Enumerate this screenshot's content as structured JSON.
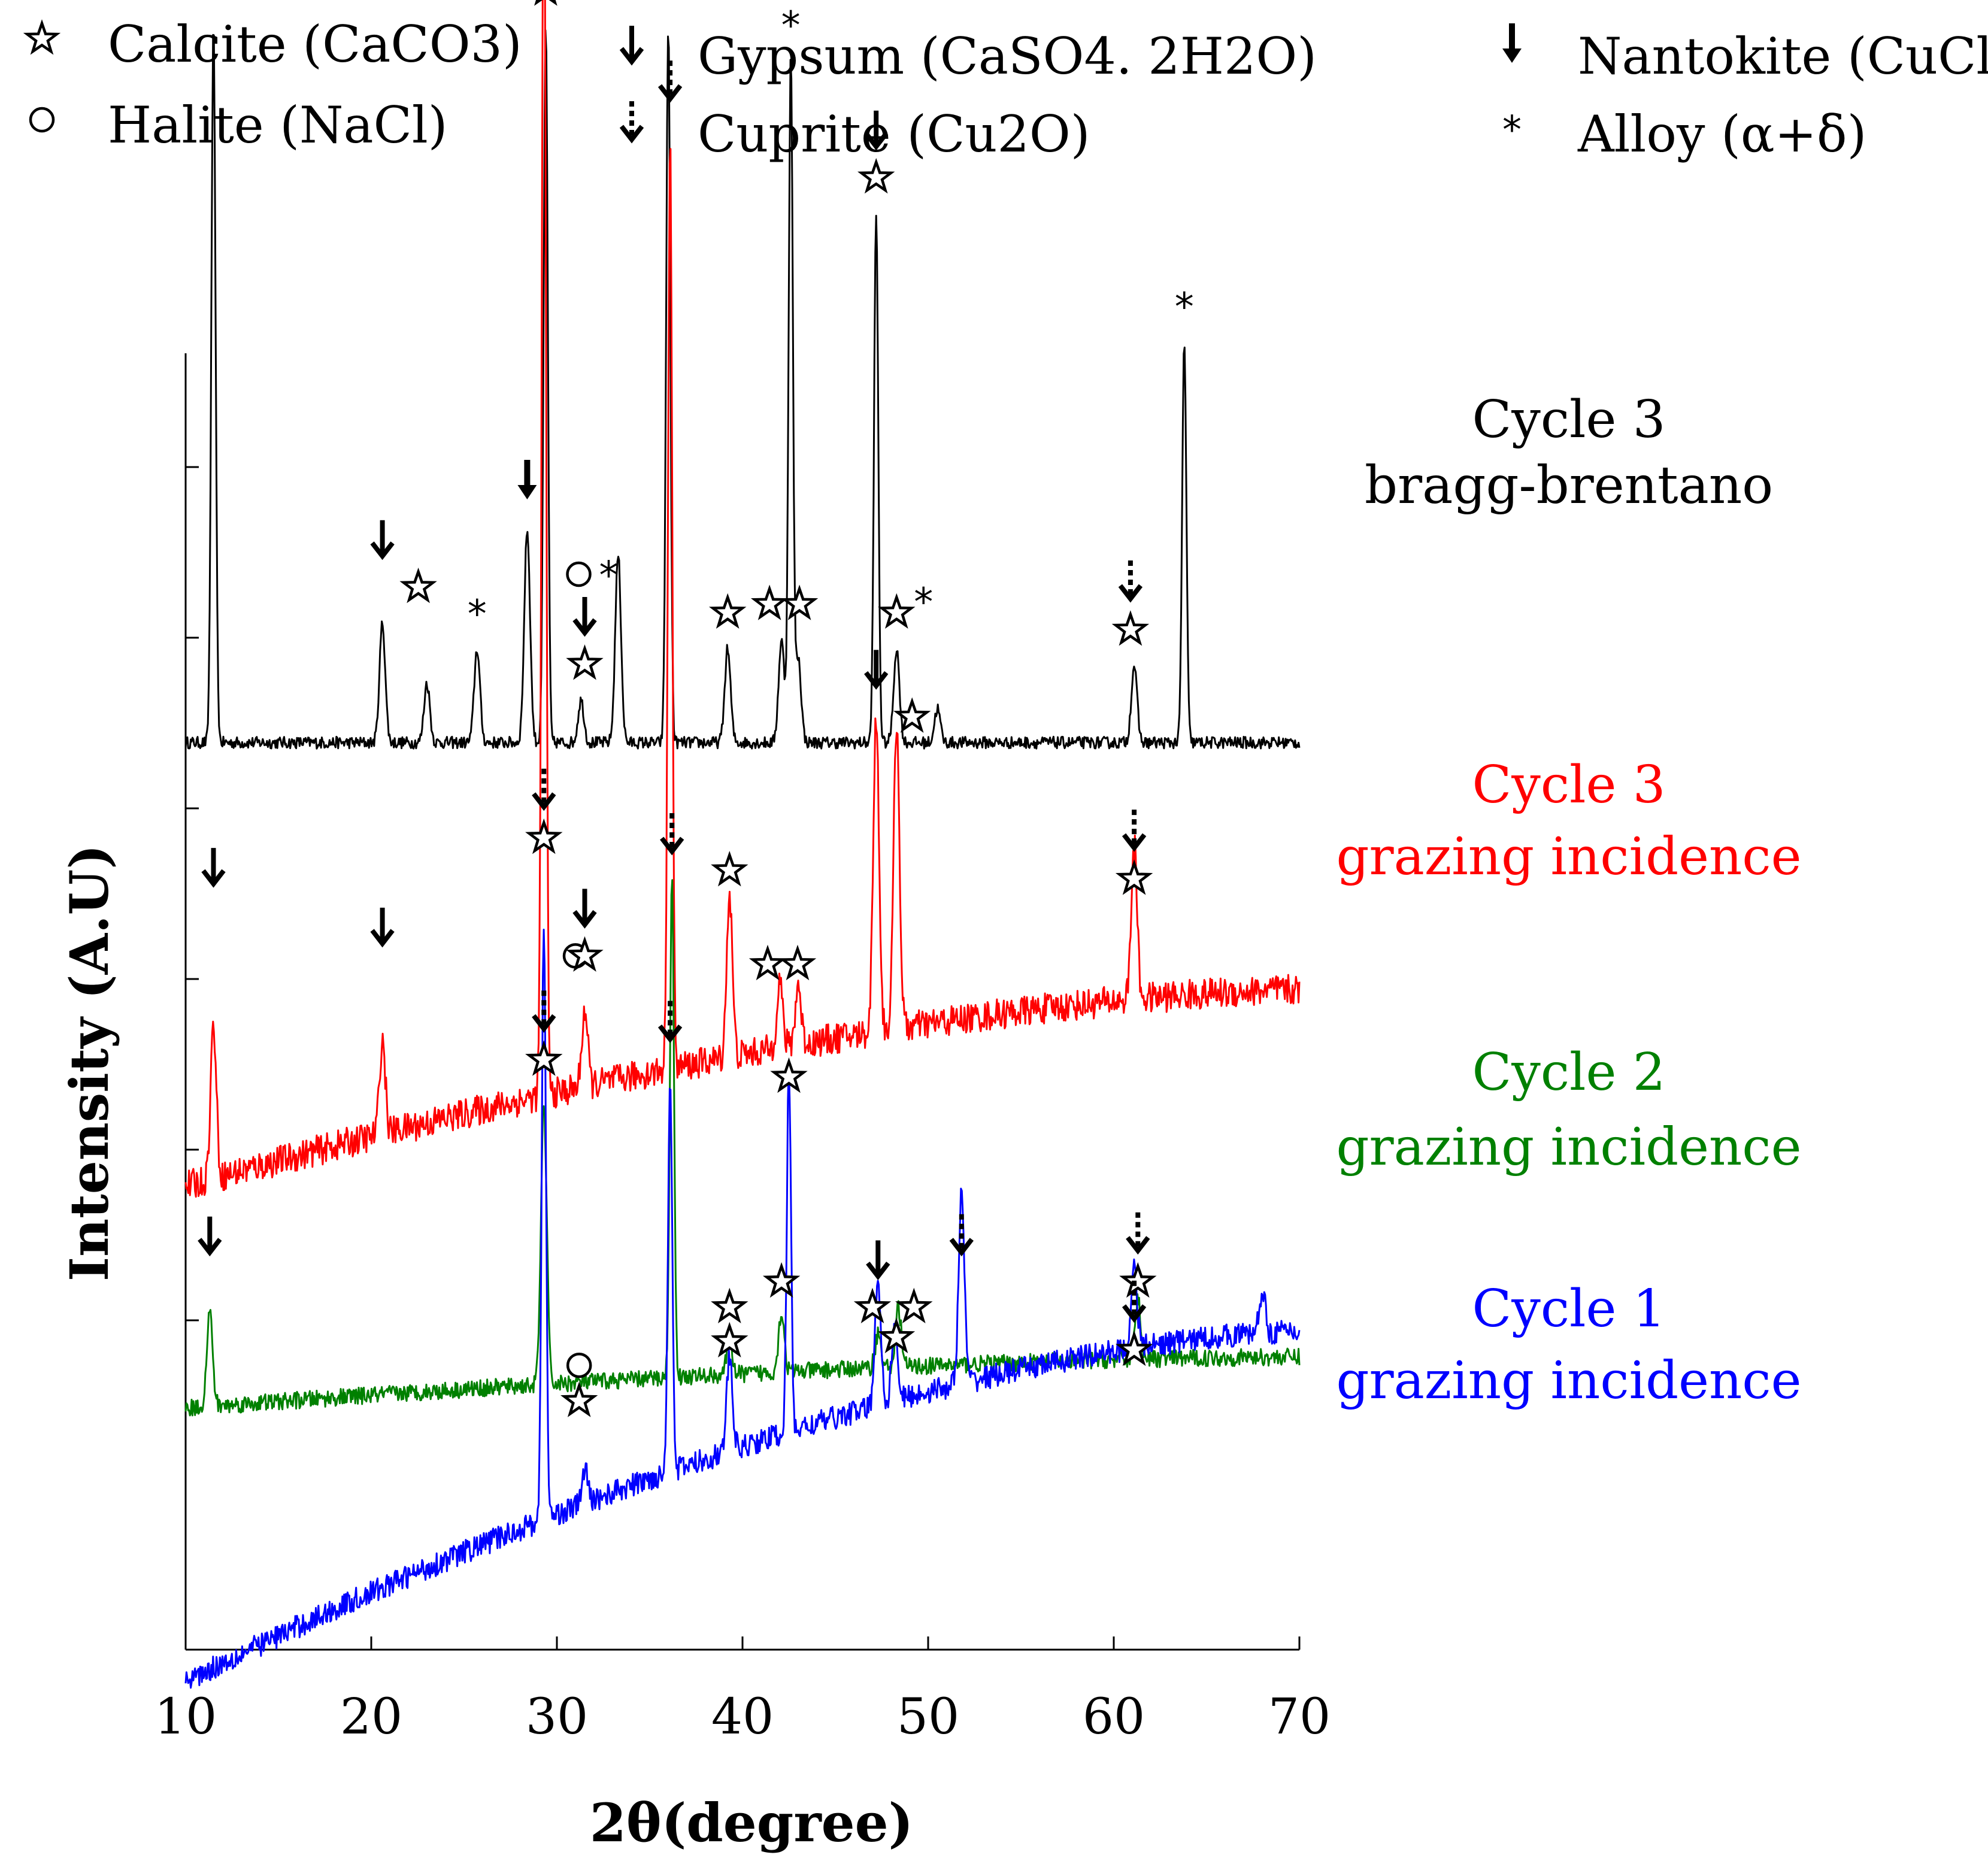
{
  "chart_data": {
    "type": "line",
    "xlabel": "2θ(degree)",
    "ylabel": "Intensity (A.U)",
    "xlim": [
      10,
      70
    ],
    "xticks": [
      10,
      20,
      30,
      40,
      50,
      60,
      70
    ],
    "grid": false,
    "legend_position": "top",
    "legend": [
      {
        "symbol": "star",
        "label": "Calcite (CaCO3)"
      },
      {
        "symbol": "circle",
        "label": "Halite (NaCl)"
      },
      {
        "symbol": "arrow-open",
        "label": "Gypsum (CaSO4. 2H2O)"
      },
      {
        "symbol": "arrow-dashed",
        "label": "Cuprite (Cu2O)"
      },
      {
        "symbol": "arrow-solid",
        "label": "Nantokite (CuCl)"
      },
      {
        "symbol": "asterisk",
        "label": "Alloy (α+δ)"
      }
    ],
    "series": [
      {
        "name": "Cycle 3 bragg-brentano",
        "label_line1": "Cycle 3",
        "label_line2": "bragg-brentano",
        "color": "#000000",
        "base_start": 4.35,
        "base_end": 4.35,
        "noise": 0.035,
        "peaks": [
          [
            11.5,
            4.2
          ],
          [
            20.6,
            0.7
          ],
          [
            23.0,
            0.35
          ],
          [
            25.7,
            0.55
          ],
          [
            28.4,
            1.25
          ],
          [
            29.4,
            4.2
          ],
          [
            31.3,
            0.25
          ],
          [
            33.3,
            1.1
          ],
          [
            36.0,
            4.2
          ],
          [
            39.2,
            0.55
          ],
          [
            42.1,
            0.6
          ],
          [
            42.6,
            4.0
          ],
          [
            43.0,
            0.5
          ],
          [
            47.2,
            3.1
          ],
          [
            48.3,
            0.55
          ],
          [
            50.5,
            0.2
          ],
          [
            61.1,
            0.45
          ],
          [
            63.8,
            2.35
          ]
        ],
        "annotations": [
          {
            "x": 11.5,
            "symbols": [
              "arrow-open"
            ]
          },
          {
            "x": 20.6,
            "symbols": [
              "arrow-open",
              "star-right"
            ]
          },
          {
            "x": 25.7,
            "symbols": [
              "asterisk"
            ]
          },
          {
            "x": 28.4,
            "symbols": [
              "arrow-solid"
            ]
          },
          {
            "x": 29.4,
            "symbols": [
              "arrow-dashed",
              "star"
            ]
          },
          {
            "x": 31.5,
            "symbols": [
              "arrow-open",
              "star"
            ]
          },
          {
            "x": 31.5,
            "symbols": [
              "circle-asterisk"
            ]
          },
          {
            "x": 36.0,
            "symbols": [
              "arrow-dashed"
            ]
          },
          {
            "x": 39.2,
            "symbols": [
              "star"
            ]
          },
          {
            "x": 42.1,
            "symbols": [
              "star-pair"
            ]
          },
          {
            "x": 42.6,
            "symbols": [
              "asterisk"
            ]
          },
          {
            "x": 47.2,
            "symbols": [
              "arrow-open",
              "star"
            ]
          },
          {
            "x": 48.3,
            "symbols": [
              "star-asterisk"
            ]
          },
          {
            "x": 60.9,
            "symbols": [
              "arrow-dashed",
              "star"
            ]
          },
          {
            "x": 63.8,
            "symbols": [
              "asterisk"
            ]
          }
        ]
      },
      {
        "name": "Cycle 3 grazing incidence",
        "label_line1": "Cycle 3",
        "label_line2": "grazing incidence",
        "color": "#ff0000",
        "base_start": 1.75,
        "base_end": 2.9,
        "noise": 0.09,
        "peaks": [
          [
            11.5,
            0.9
          ],
          [
            20.6,
            0.55
          ],
          [
            29.3,
            7.6
          ],
          [
            31.5,
            0.45
          ],
          [
            36.1,
            5.5
          ],
          [
            39.3,
            0.95
          ],
          [
            42.0,
            0.4
          ],
          [
            43.0,
            0.35
          ],
          [
            47.2,
            1.85
          ],
          [
            48.3,
            1.8
          ],
          [
            61.1,
            0.9
          ]
        ],
        "annotations": [
          {
            "x": 11.5,
            "symbols": [
              "arrow-open"
            ]
          },
          {
            "x": 20.6,
            "symbols": [
              "arrow-open"
            ]
          },
          {
            "x": 29.3,
            "symbols": [
              "arrow-dashed",
              "star"
            ]
          },
          {
            "x": 31.0,
            "symbols": [
              "circle"
            ]
          },
          {
            "x": 31.5,
            "symbols": [
              "arrow-open",
              "star"
            ]
          },
          {
            "x": 36.1,
            "symbols": [
              "arrow-dashed"
            ]
          },
          {
            "x": 39.3,
            "symbols": [
              "star"
            ]
          },
          {
            "x": 42.0,
            "symbols": [
              "star-pair"
            ]
          },
          {
            "x": 47.2,
            "symbols": [
              "arrow-open",
              "star-right"
            ]
          },
          {
            "x": 61.1,
            "symbols": [
              "arrow-dashed",
              "star"
            ]
          }
        ]
      },
      {
        "name": "Cycle 2 grazing incidence",
        "label_line1": "Cycle 2",
        "label_line2": "grazing incidence",
        "color": "#008000",
        "base_start": 0.45,
        "base_end": 0.75,
        "noise": 0.05,
        "peaks": [
          [
            11.3,
            0.55
          ],
          [
            29.3,
            1.65
          ],
          [
            36.2,
            2.9
          ],
          [
            39.3,
            0.2
          ],
          [
            42.1,
            0.35
          ],
          [
            47.3,
            0.2
          ],
          [
            48.4,
            0.35
          ],
          [
            61.3,
            0.35
          ]
        ],
        "annotations": [
          {
            "x": 11.3,
            "symbols": [
              "arrow-open"
            ]
          },
          {
            "x": 29.3,
            "symbols": [
              "arrow-dashed",
              "star"
            ]
          },
          {
            "x": 36.2,
            "symbols": [
              "arrow-dashed"
            ]
          },
          {
            "x": 39.3,
            "symbols": [
              "star"
            ]
          },
          {
            "x": 42.1,
            "symbols": [
              "star"
            ]
          },
          {
            "x": 47.3,
            "symbols": [
              "arrow-open",
              "star-right"
            ]
          },
          {
            "x": 61.3,
            "symbols": [
              "arrow-dashed",
              "star"
            ]
          }
        ]
      },
      {
        "name": "Cycle 1 grazing incidence",
        "label_line1": "Cycle 1",
        "label_line2": "grazing incidence",
        "color": "#0000ff",
        "base_start": -1.15,
        "base_end": 0.9,
        "noise": 0.07,
        "peaks": [
          [
            29.3,
            3.5
          ],
          [
            31.5,
            0.2
          ],
          [
            36.1,
            2.35
          ],
          [
            39.3,
            0.55
          ],
          [
            42.5,
            2.1
          ],
          [
            47.3,
            0.75
          ],
          [
            48.2,
            0.45
          ],
          [
            51.8,
            1.1
          ],
          [
            61.1,
            0.5
          ],
          [
            68.0,
            0.25
          ]
        ],
        "annotations": [
          {
            "x": 29.3,
            "symbols": [
              "arrow-dashed",
              "star"
            ]
          },
          {
            "x": 31.2,
            "symbols": [
              "circle",
              "star"
            ]
          },
          {
            "x": 36.1,
            "symbols": [
              "arrow-dashed"
            ]
          },
          {
            "x": 39.3,
            "symbols": [
              "star"
            ]
          },
          {
            "x": 42.5,
            "symbols": [
              "star"
            ]
          },
          {
            "x": 47.0,
            "symbols": [
              "star-low"
            ]
          },
          {
            "x": 51.8,
            "symbols": [
              "arrow-dashed"
            ]
          },
          {
            "x": 61.1,
            "symbols": [
              "arrow-dashed",
              "star"
            ]
          }
        ]
      }
    ]
  }
}
